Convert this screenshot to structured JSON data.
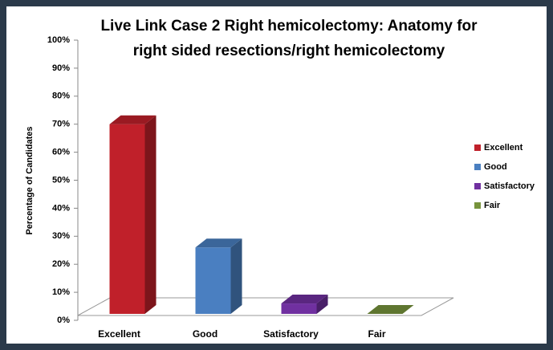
{
  "chart_data": {
    "type": "bar3d",
    "title": [
      "Live Link Case 2 Right hemicolectomy: Anatomy for",
      "right sided resections/right hemicolectomy"
    ],
    "y_label": "Percentage of Candidates",
    "categories": [
      "Excellent",
      "Good",
      "Satisfactory",
      "Fair"
    ],
    "values": [
      70,
      26,
      6,
      0
    ],
    "colors": [
      "#c0202a",
      "#4a7fc1",
      "#7030a0",
      "#77933c"
    ],
    "ylim": [
      0,
      100
    ],
    "yticks": [
      {
        "value": 0,
        "label": "0%"
      },
      {
        "value": 10,
        "label": "10%"
      },
      {
        "value": 20,
        "label": "20%"
      },
      {
        "value": 30,
        "label": "30%"
      },
      {
        "value": 40,
        "label": "40%"
      },
      {
        "value": 50,
        "label": "50%"
      },
      {
        "value": 60,
        "label": "60%"
      },
      {
        "value": 70,
        "label": "70%"
      },
      {
        "value": 80,
        "label": "80%"
      },
      {
        "value": 90,
        "label": "90%"
      },
      {
        "value": 100,
        "label": "100%"
      }
    ],
    "legend": "right"
  }
}
